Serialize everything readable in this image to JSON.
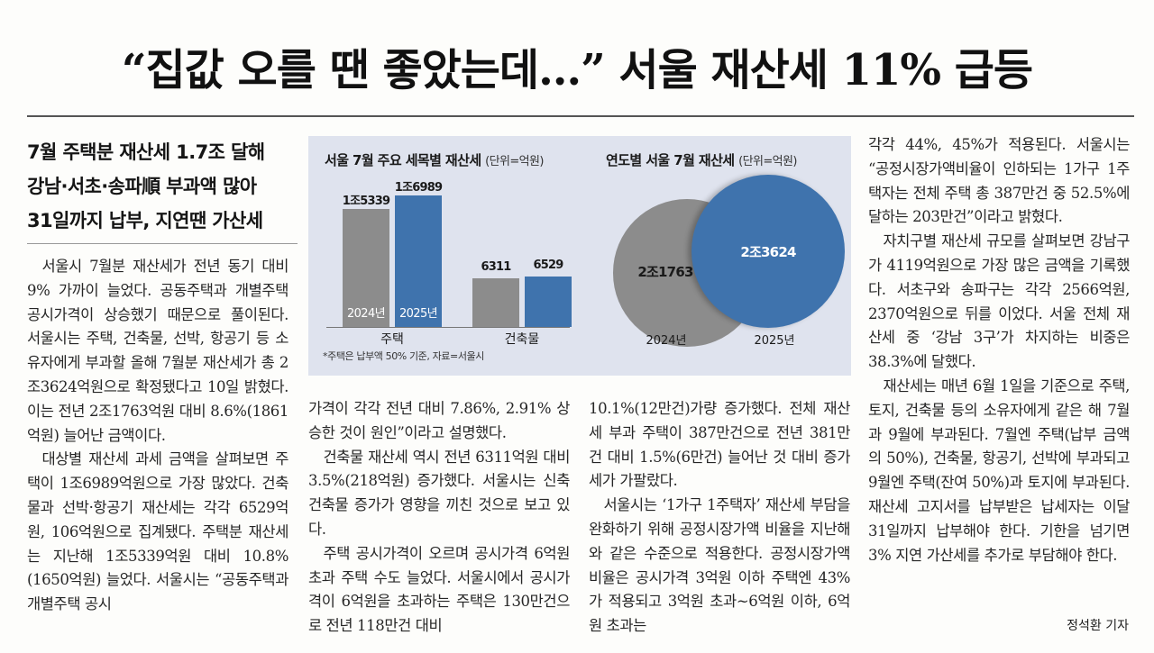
{
  "headline": "“집값 오를 땐 좋았는데…” 서울 재산세 11% 급등",
  "subheads": [
    "7월 주택분 재산세 1.7조 달해",
    "강남·서초·송파順 부과액 많아",
    "31일까지 납부, 지연땐 가산세"
  ],
  "col1": [
    "서울시 7월분 재산세가 전년 동기 대비 9% 가까이 늘었다. 공동주택과 개별주택 공시가격이 상승했기 때문으로 풀이된다. 서울시는 주택, 건축물, 선박, 항공기 등 소유자에게 부과할 올해 7월분 재산세가 총 2조3624억원으로 확정됐다고 10일 밝혔다. 이는 전년 2조1763억원 대비 8.6%(1861억원) 늘어난 금액이다.",
    "대상별 재산세 과세 금액을 살펴보면 주택이 1조6989억원으로 가장 많았다. 건축물과 선박·항공기 재산세는 각각 6529억원, 106억원으로 집계됐다. 주택분 재산세는 지난해 1조5339억원 대비 10.8%(1650억원) 늘었다. 서울시는 “공동주택과 개별주택 공시"
  ],
  "col2": [
    "가격이 각각 전년 대비 7.86%, 2.91% 상승한 것이 원인”이라고 설명했다.",
    "건축물 재산세 역시 전년 6311억원 대비 3.5%(218억원) 증가했다. 서울시는 신축 건축물 증가가 영향을 끼친 것으로 보고 있다.",
    "주택 공시가격이 오르며 공시가격 6억원 초과 주택 수도 늘었다. 서울시에서 공시가격이 6억원을 초과하는 주택은 130만건으로 전년 118만건 대비"
  ],
  "col3": [
    "10.1%(12만건)가량 증가했다. 전체 재산세 부과 주택이 387만건으로 전년 381만건 대비 1.5%(6만건) 늘어난 것 대비 증가세가 가팔랐다.",
    "서울시는 ‘1가구 1주택자’ 재산세 부담을 완화하기 위해 공정시장가액 비율을 지난해와 같은 수준으로 적용한다. 공정시장가액비율은 공시가격 3억원 이하 주택엔 43%가 적용되고 3억원 초과~6억원 이하, 6억원 초과는"
  ],
  "col4": [
    "각각 44%, 45%가 적용된다. 서울시는 “공정시장가액비율이 인하되는 1가구 1주택자는 전체 주택 총 387만건 중 52.5%에 달하는 203만건”이라고 밝혔다.",
    "자치구별 재산세 규모를 살펴보면 강남구가 4119억원으로 가장 많은 금액을 기록했다. 서초구와 송파구는 각각 2566억원, 2370억원으로 뒤를 이었다. 서울 전체 재산세 중 ‘강남 3구’가 차지하는 비중은 38.3%에 달했다.",
    "재산세는 매년 6월 1일을 기준으로 주택, 토지, 건축물 등의 소유자에게 같은 해 7월과 9월에 부과된다. 7월엔 주택(납부 금액의 50%), 건축물, 항공기, 선박에 부과되고 9월엔 주택(잔여 50%)과 토지에 부과된다. 재산세 고지서를 납부받은 납세자는 이달 31일까지 납부해야 한다. 기한을 넘기면 3% 지연 가산세를 추가로 부담해야 한다."
  ],
  "byline": "정석환 기자",
  "graphic": {
    "bg_color": "#dfe3ee",
    "gray_color": "#8c8c8c",
    "blue_color": "#3f73ad",
    "note": "*주택은 납부액 50% 기준, 자료=서울시"
  },
  "chart_data": [
    {
      "type": "bar",
      "title": "서울 7월 주요 세목별 재산세",
      "unit": "(단위=억원)",
      "categories": [
        "주택",
        "건축물"
      ],
      "series": [
        {
          "name": "2024년",
          "values": [
            15339,
            6311
          ],
          "labels": [
            "1조5339",
            "6311"
          ],
          "color": "#8c8c8c"
        },
        {
          "name": "2025년",
          "values": [
            16989,
            6529
          ],
          "labels": [
            "1조6989",
            "6529"
          ],
          "color": "#3f73ad"
        }
      ],
      "ylim": [
        0,
        17500
      ]
    },
    {
      "type": "bubble",
      "title": "연도별 서울 7월 재산세",
      "unit": "(단위=억원)",
      "categories": [
        "2024년",
        "2025년"
      ],
      "values": [
        21763,
        23624
      ],
      "labels": [
        "2조1763",
        "2조3624"
      ],
      "colors": [
        "#8c8c8c",
        "#3f73ad"
      ]
    }
  ]
}
